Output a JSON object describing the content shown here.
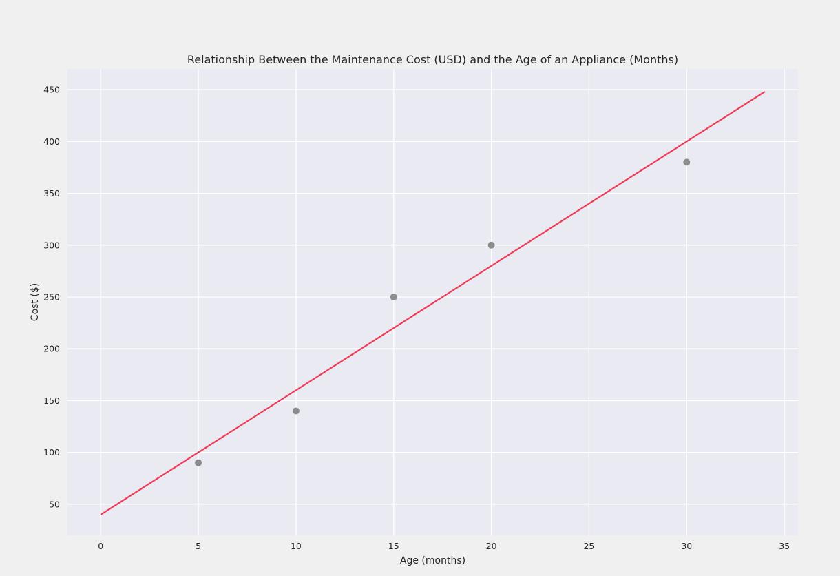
{
  "chart_data": {
    "type": "scatter",
    "title": "Relationship Between the Maintenance Cost (USD) and the Age of an Appliance (Months)",
    "xlabel": "Age (months)",
    "ylabel": "Cost ($)",
    "xlim": [
      -1.7,
      35.7
    ],
    "ylim": [
      20,
      470
    ],
    "xticks": [
      0,
      5,
      10,
      15,
      20,
      25,
      30,
      35
    ],
    "yticks": [
      50,
      100,
      150,
      200,
      250,
      300,
      350,
      400,
      450
    ],
    "grid": true,
    "points": [
      {
        "x": 5,
        "y": 90
      },
      {
        "x": 10,
        "y": 140
      },
      {
        "x": 15,
        "y": 250
      },
      {
        "x": 20,
        "y": 300
      },
      {
        "x": 30,
        "y": 380
      }
    ],
    "fit_line": {
      "x": [
        0,
        34
      ],
      "y": [
        40,
        448
      ]
    },
    "colors": {
      "figure_background": "#f0f0f0",
      "plot_background": "#eaeaf2",
      "grid": "#ffffff",
      "points": "#8c8c8c",
      "fit_line": "#f03a55"
    }
  }
}
